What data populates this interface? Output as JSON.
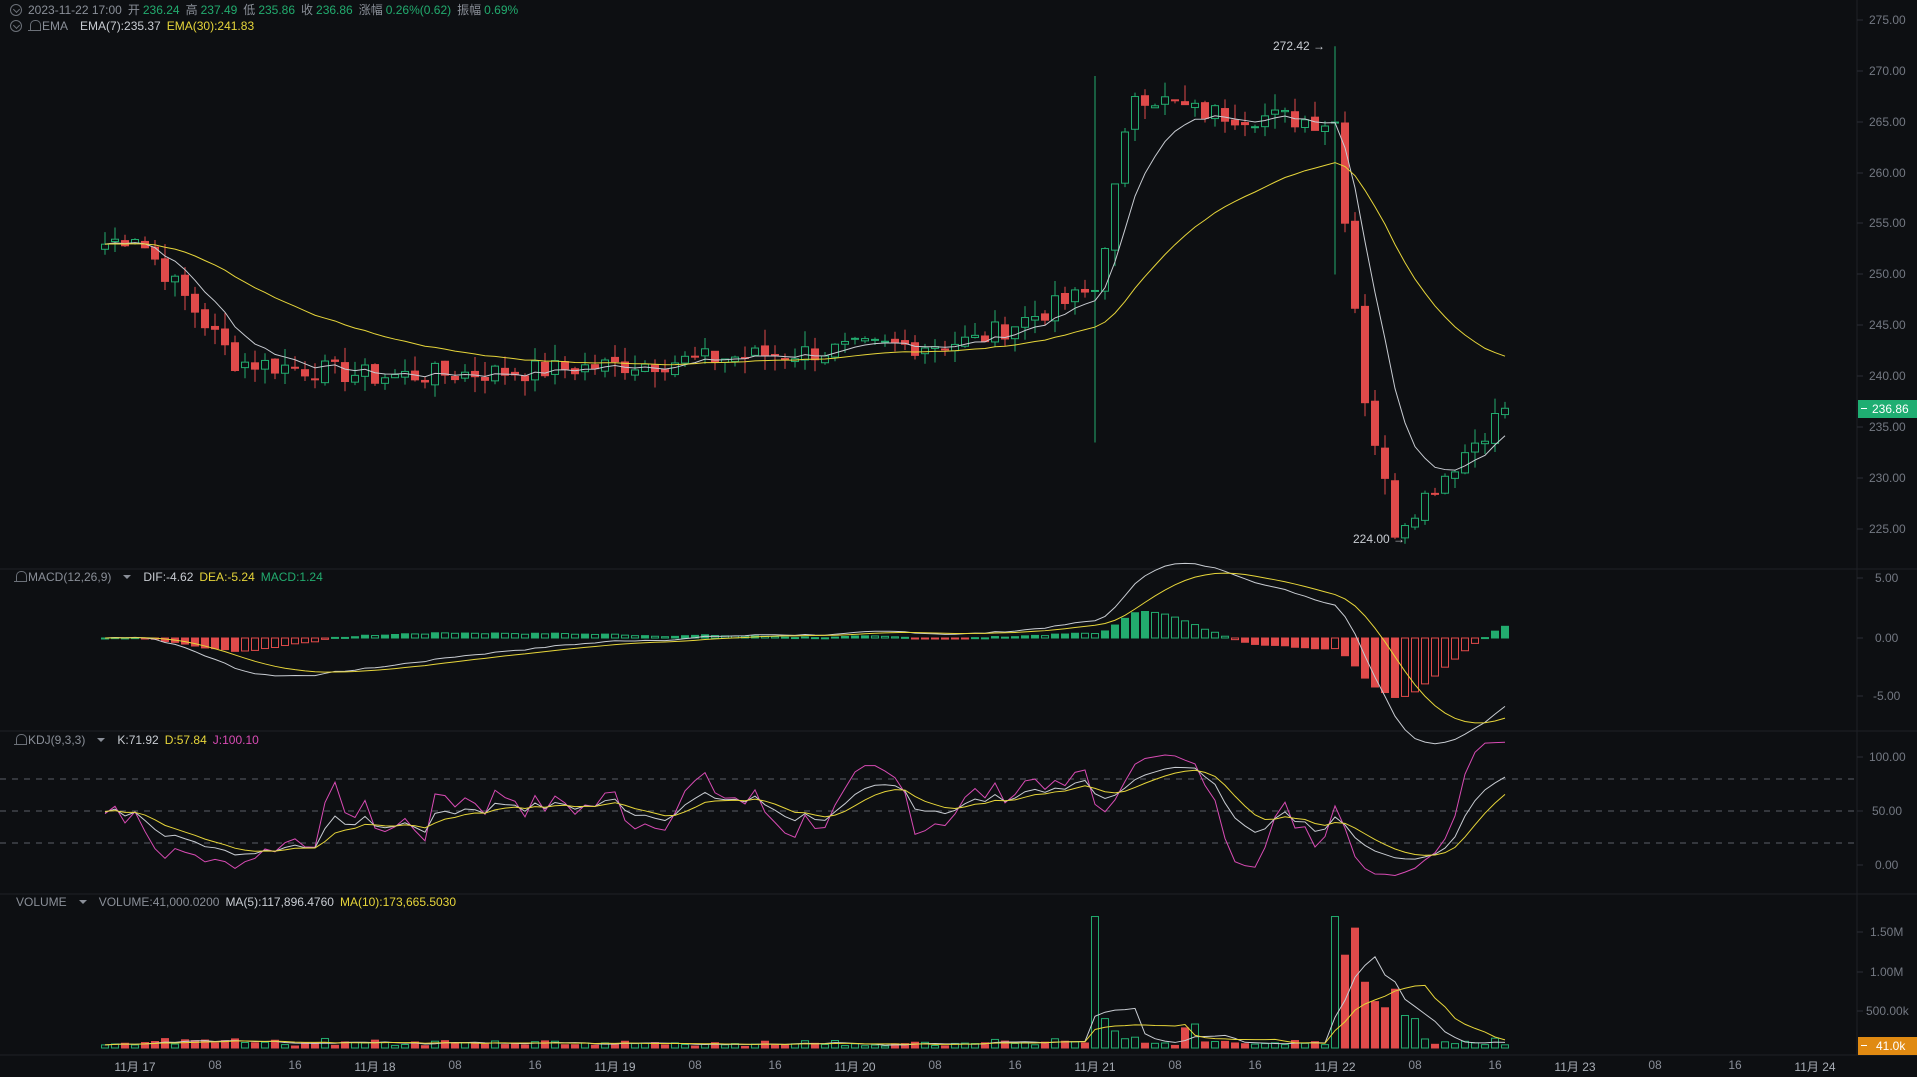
{
  "header": {
    "datetime": "2023-11-22 17:00",
    "open_label": "开",
    "open": "236.24",
    "high_label": "高",
    "high": "237.49",
    "low_label": "低",
    "low": "235.86",
    "close_label": "收",
    "close": "236.86",
    "change_label": "涨幅",
    "change": "0.26%(0.62)",
    "amplitude_label": "振幅",
    "amplitude": "0.69%"
  },
  "ema_legend": {
    "name": "EMA",
    "ema7": "EMA(7):235.37",
    "ema30": "EMA(30):241.83"
  },
  "macd_legend": {
    "name": "MACD(12,26,9)",
    "dif": "DIF:-4.62",
    "dea": "DEA:-5.24",
    "macd": "MACD:1.24"
  },
  "kdj_legend": {
    "name": "KDJ(9,3,3)",
    "k": "K:71.92",
    "d": "D:57.84",
    "j": "J:100.10"
  },
  "volume_legend": {
    "name": "VOLUME",
    "volume": "VOLUME:41,000.0200",
    "ma5": "MA(5):117,896.4760",
    "ma10": "MA(10):173,665.5030"
  },
  "annotations": {
    "high_marker": "272.42 →",
    "low_marker": "224.00 →"
  },
  "price_axis": {
    "ticks": [
      "275.00",
      "270.00",
      "265.00",
      "260.00",
      "255.00",
      "250.00",
      "245.00",
      "240.00",
      "235.00",
      "230.00",
      "225.00"
    ],
    "current_price": "236.86"
  },
  "macd_axis": {
    "ticks": [
      "5.00",
      "0.00",
      "-5.00"
    ]
  },
  "kdj_axis": {
    "ticks": [
      "100.00",
      "50.00",
      "0.00"
    ]
  },
  "volume_axis": {
    "ticks": [
      "1.50M",
      "1.00M",
      "500.00k"
    ],
    "current_volume": "41.0k"
  },
  "time_axis": {
    "labels": [
      "11月 17",
      "08",
      "16",
      "11月 18",
      "08",
      "16",
      "11月 19",
      "08",
      "16",
      "11月 20",
      "08",
      "16",
      "11月 21",
      "08",
      "16",
      "11月 22",
      "08",
      "16",
      "11月 23",
      "08",
      "16",
      "11月 24"
    ]
  },
  "colors": {
    "background": "#0d0f12",
    "up": "#22ab6e",
    "down": "#e04a4a",
    "ema7": "#c8ccd2",
    "ema30": "#e6d53a",
    "kdj_j": "#d84bb4",
    "price_tag": "#1fae72",
    "volume_tag": "#e08a12"
  },
  "chart_data": [
    {
      "type": "candlestick",
      "title": "Price (1h candles) with EMA(7), EMA(30)",
      "x_range": [
        "11月 16 ~21:00",
        "2023-11-22 17:00"
      ],
      "ylim": [
        222,
        277
      ],
      "latest": {
        "open": 236.24,
        "high": 237.49,
        "low": 235.86,
        "close": 236.86
      },
      "highest": 272.42,
      "lowest": 224.0,
      "series": [
        {
          "name": "EMA(7)",
          "last": 235.37
        },
        {
          "name": "EMA(30)",
          "last": 241.83
        }
      ],
      "key_points": [
        {
          "t": "11月17 00:00",
          "close": 254.0
        },
        {
          "t": "11月17 10:00",
          "close": 241.5
        },
        {
          "t": "11月18 00:00",
          "close": 240.0
        },
        {
          "t": "11月18 15:00",
          "close": 240.5
        },
        {
          "t": "11月20 12:00",
          "close": 243.5
        },
        {
          "t": "11月21 00:00",
          "close": 248.5
        },
        {
          "t": "11月21 04:00",
          "close": 268.0
        },
        {
          "t": "11月21 10:00",
          "close": 266.0
        },
        {
          "t": "11月22 00:00",
          "close": 265.0
        },
        {
          "t": "11月22 03:00",
          "close": 238.0
        },
        {
          "t": "11月22 06:00",
          "close": 225.0
        },
        {
          "t": "11月22 17:00",
          "close": 236.86
        }
      ]
    },
    {
      "type": "bar+line",
      "title": "MACD(12,26,9)",
      "ylim": [
        -7,
        6
      ],
      "series": [
        {
          "name": "DIF",
          "last": -4.62
        },
        {
          "name": "DEA",
          "last": -5.24
        },
        {
          "name": "MACD",
          "last": 1.24
        }
      ]
    },
    {
      "type": "line",
      "title": "KDJ(9,3,3)",
      "ylim": [
        -20,
        120
      ],
      "reference_lines": [
        80,
        50,
        20
      ],
      "series": [
        {
          "name": "K",
          "last": 71.92
        },
        {
          "name": "D",
          "last": 57.84
        },
        {
          "name": "J",
          "last": 100.1
        }
      ]
    },
    {
      "type": "bar+line",
      "title": "VOLUME",
      "ylim": [
        0,
        1900000
      ],
      "series": [
        {
          "name": "VOLUME",
          "last": 41000.02
        },
        {
          "name": "MA(5)",
          "last": 117896.476
        },
        {
          "name": "MA(10)",
          "last": 173665.503
        }
      ],
      "peaks": [
        {
          "t": "11月21 00:00",
          "value": 1700000
        },
        {
          "t": "11月22 00:00",
          "value": 1700000
        },
        {
          "t": "11月22 02:00",
          "value": 1550000
        }
      ]
    }
  ]
}
